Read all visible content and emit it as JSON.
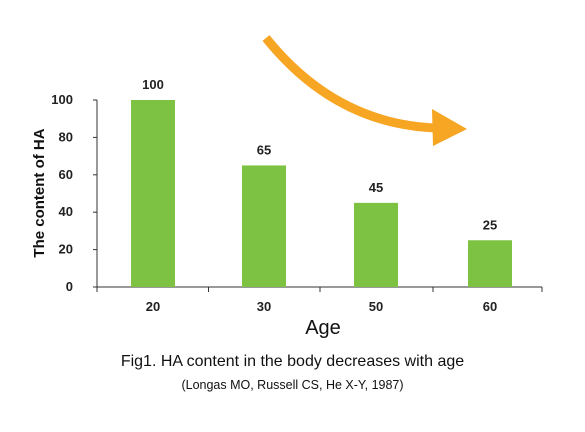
{
  "chart_data": {
    "type": "bar",
    "categories": [
      "20",
      "30",
      "50",
      "60"
    ],
    "values": [
      100,
      65,
      45,
      25
    ],
    "data_labels": [
      "100",
      "65",
      "45",
      "25"
    ],
    "ylabel": "The content of HA",
    "xlabel": "Age",
    "ylim": [
      0,
      100
    ],
    "yticks": [
      "0",
      "20",
      "40",
      "60",
      "80",
      "100"
    ],
    "grid": false,
    "legend": "none",
    "annotation": "downward-trend-arrow-icon"
  },
  "caption": {
    "title": "Fig1.  HA content in the body decreases with age",
    "source": "(Longas MO, Russell CS, He X-Y,  1987)"
  },
  "colors": {
    "bar": "#7dc242",
    "arrow": "#f6a623",
    "axis": "#333333",
    "text": "#222222"
  }
}
